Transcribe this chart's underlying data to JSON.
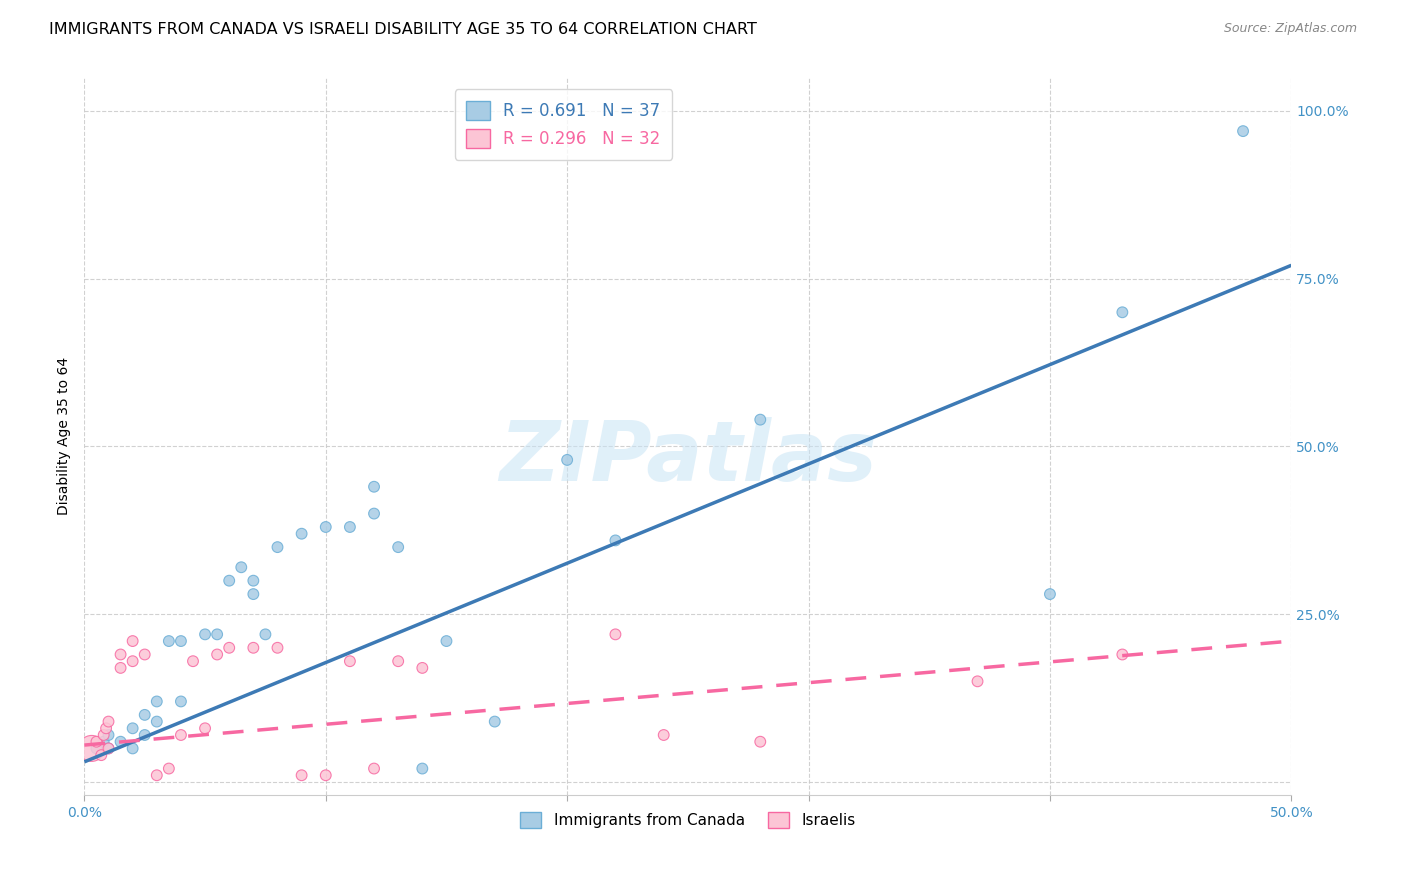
{
  "title": "IMMIGRANTS FROM CANADA VS ISRAELI DISABILITY AGE 35 TO 64 CORRELATION CHART",
  "source": "Source: ZipAtlas.com",
  "ylabel": "Disability Age 35 to 64",
  "xlim": [
    0.0,
    0.5
  ],
  "ylim": [
    -0.02,
    1.05
  ],
  "xtick_positions": [
    0.0,
    0.1,
    0.2,
    0.3,
    0.4,
    0.5
  ],
  "xticklabels": [
    "0.0%",
    "",
    "",
    "",
    "",
    "50.0%"
  ],
  "ytick_positions": [
    0.0,
    0.25,
    0.5,
    0.75,
    1.0
  ],
  "yticklabels_right": [
    "",
    "25.0%",
    "50.0%",
    "75.0%",
    "100.0%"
  ],
  "legend1_label": "R = 0.691   N = 37",
  "legend2_label": "R = 0.296   N = 32",
  "legend_series": [
    "Immigrants from Canada",
    "Israelis"
  ],
  "blue_color": "#a8cce4",
  "blue_edge_color": "#6baed6",
  "pink_color": "#fcc5d5",
  "pink_edge_color": "#f768a1",
  "blue_line_color": "#3d7ab5",
  "pink_line_color": "#f768a1",
  "watermark_text": "ZIPatlas",
  "blue_scatter_x": [
    0.005,
    0.008,
    0.01,
    0.01,
    0.015,
    0.02,
    0.02,
    0.025,
    0.025,
    0.03,
    0.03,
    0.035,
    0.04,
    0.04,
    0.05,
    0.055,
    0.06,
    0.065,
    0.07,
    0.07,
    0.075,
    0.08,
    0.09,
    0.1,
    0.11,
    0.12,
    0.12,
    0.13,
    0.14,
    0.15,
    0.17,
    0.2,
    0.22,
    0.28,
    0.4,
    0.43,
    0.48
  ],
  "blue_scatter_y": [
    0.05,
    0.06,
    0.05,
    0.07,
    0.06,
    0.05,
    0.08,
    0.07,
    0.1,
    0.09,
    0.12,
    0.21,
    0.12,
    0.21,
    0.22,
    0.22,
    0.3,
    0.32,
    0.28,
    0.3,
    0.22,
    0.35,
    0.37,
    0.38,
    0.38,
    0.4,
    0.44,
    0.35,
    0.02,
    0.21,
    0.09,
    0.48,
    0.36,
    0.54,
    0.28,
    0.7,
    0.97
  ],
  "blue_scatter_sizes": [
    60,
    60,
    60,
    60,
    60,
    60,
    60,
    60,
    60,
    60,
    60,
    60,
    60,
    60,
    60,
    60,
    60,
    60,
    60,
    60,
    60,
    60,
    60,
    60,
    60,
    60,
    60,
    60,
    60,
    60,
    60,
    60,
    60,
    60,
    60,
    60,
    60
  ],
  "pink_scatter_x": [
    0.003,
    0.005,
    0.007,
    0.008,
    0.009,
    0.01,
    0.01,
    0.015,
    0.015,
    0.02,
    0.02,
    0.025,
    0.03,
    0.035,
    0.04,
    0.045,
    0.05,
    0.055,
    0.06,
    0.07,
    0.08,
    0.09,
    0.1,
    0.11,
    0.12,
    0.13,
    0.14,
    0.22,
    0.24,
    0.28,
    0.37,
    0.43
  ],
  "pink_scatter_y": [
    0.05,
    0.06,
    0.04,
    0.07,
    0.08,
    0.05,
    0.09,
    0.17,
    0.19,
    0.18,
    0.21,
    0.19,
    0.01,
    0.02,
    0.07,
    0.18,
    0.08,
    0.19,
    0.2,
    0.2,
    0.2,
    0.01,
    0.01,
    0.18,
    0.02,
    0.18,
    0.17,
    0.22,
    0.07,
    0.06,
    0.15,
    0.19
  ],
  "pink_scatter_sizes": [
    350,
    60,
    60,
    60,
    60,
    60,
    60,
    60,
    60,
    60,
    60,
    60,
    60,
    60,
    60,
    60,
    60,
    60,
    60,
    60,
    60,
    60,
    60,
    60,
    60,
    60,
    60,
    60,
    60,
    60,
    60,
    60
  ],
  "blue_trend_x": [
    0.0,
    0.5
  ],
  "blue_trend_y": [
    0.03,
    0.77
  ],
  "pink_trend_x": [
    0.0,
    0.5
  ],
  "pink_trend_y": [
    0.055,
    0.21
  ],
  "grid_color": "#cccccc",
  "title_fontsize": 11.5,
  "axis_label_fontsize": 10,
  "tick_fontsize": 10,
  "source_fontsize": 9
}
